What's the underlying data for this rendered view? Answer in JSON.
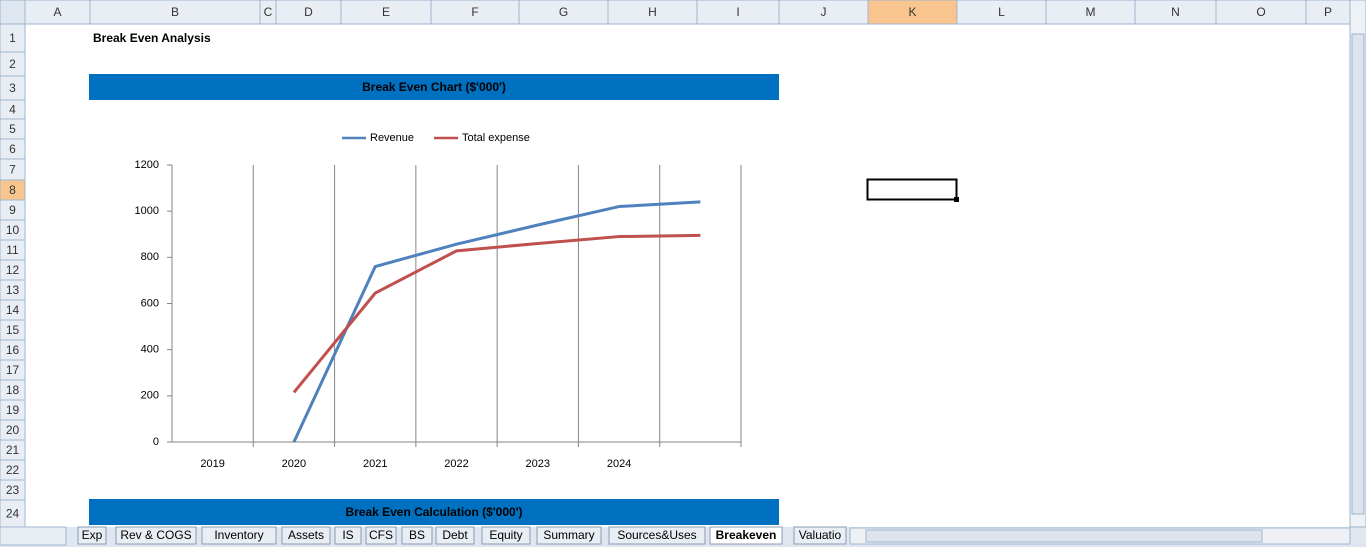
{
  "sheet": {
    "columns": [
      "A",
      "B",
      "C",
      "D",
      "E",
      "F",
      "G",
      "H",
      "I",
      "J",
      "K",
      "L",
      "M",
      "N",
      "O",
      "P"
    ],
    "rows": [
      1,
      2,
      3,
      4,
      5,
      6,
      7,
      8,
      9,
      10,
      11,
      12,
      13,
      14,
      15,
      16,
      17,
      18,
      19,
      20,
      21,
      22,
      23,
      24
    ],
    "title": "Break Even Analysis",
    "banners": [
      "Break Even Chart ($'000')",
      "Break Even Calculation ($'000')"
    ],
    "tabs": [
      "Exp",
      "Rev & COGS",
      "Inventory",
      "Assets",
      "IS",
      "CFS",
      "BS",
      "Debt",
      "Equity",
      "Summary",
      "Sources&Uses",
      "Breakeven",
      "Valuatio"
    ]
  },
  "chart_data": {
    "type": "line",
    "categories": [
      "2019",
      "2020",
      "2021",
      "2022",
      "2023",
      "2024",
      null
    ],
    "series": [
      {
        "name": "Revenue",
        "color": "#4f81bd",
        "values": [
          null,
          0,
          760,
          857,
          940,
          1020,
          1040
        ]
      },
      {
        "name": "Total expense",
        "color": "#c0504d",
        "values": [
          null,
          215,
          645,
          828,
          860,
          890,
          895
        ]
      }
    ],
    "ylim": [
      0,
      1200
    ],
    "yticks": [
      0,
      200,
      400,
      600,
      800,
      1000,
      1200
    ],
    "legend": "top",
    "grid": "vertical"
  }
}
